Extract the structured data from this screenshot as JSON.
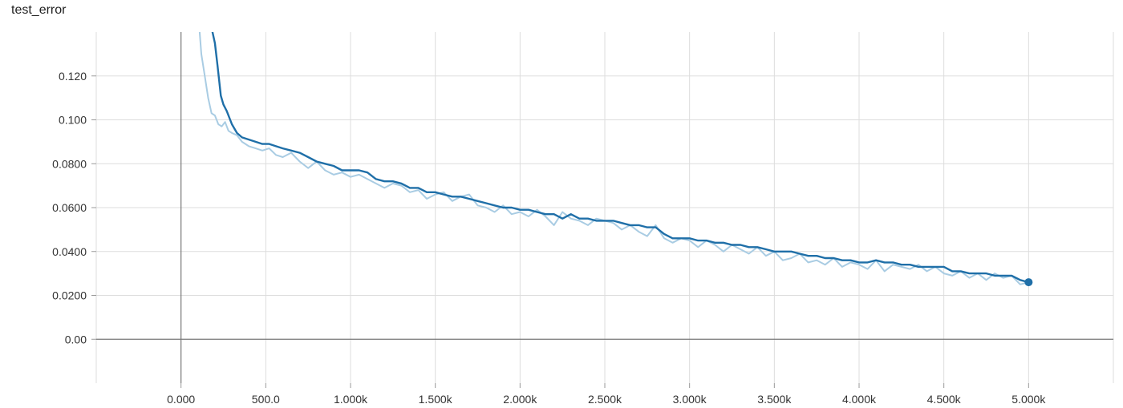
{
  "chart_data": {
    "type": "line",
    "title": "test_error",
    "xlabel": "",
    "ylabel": "",
    "xlim": [
      -500,
      5500
    ],
    "ylim": [
      -0.02,
      0.14
    ],
    "x_ticks": [
      0,
      500,
      1000,
      1500,
      2000,
      2500,
      3000,
      3500,
      4000,
      4500,
      5000
    ],
    "x_tick_labels": [
      "0.000",
      "500.0",
      "1.000k",
      "1.500k",
      "2.000k",
      "2.500k",
      "3.000k",
      "3.500k",
      "4.000k",
      "4.500k",
      "5.000k"
    ],
    "y_ticks": [
      0,
      0.02,
      0.04,
      0.06,
      0.08,
      0.1,
      0.12
    ],
    "y_tick_labels": [
      "0.00",
      "0.0200",
      "0.0400",
      "0.0600",
      "0.0800",
      "0.100",
      "0.120"
    ],
    "grid": true,
    "colors": {
      "smoothed": "#1f6fa8",
      "raw": "#a9cce3",
      "zero_line": "#777777",
      "grid": "#dddddd"
    },
    "series": [
      {
        "role": "raw",
        "x": [
          100,
          120,
          140,
          160,
          180,
          200,
          220,
          240,
          260,
          280,
          300,
          330,
          360,
          400,
          440,
          480,
          520,
          560,
          600,
          650,
          700,
          750,
          800,
          850,
          900,
          950,
          1000,
          1050,
          1100,
          1150,
          1200,
          1250,
          1300,
          1350,
          1400,
          1450,
          1500,
          1550,
          1600,
          1650,
          1700,
          1750,
          1800,
          1850,
          1900,
          1950,
          2000,
          2050,
          2100,
          2150,
          2200,
          2250,
          2300,
          2350,
          2400,
          2450,
          2500,
          2550,
          2600,
          2650,
          2700,
          2750,
          2800,
          2850,
          2900,
          2950,
          3000,
          3050,
          3100,
          3150,
          3200,
          3250,
          3300,
          3350,
          3400,
          3450,
          3500,
          3550,
          3600,
          3650,
          3700,
          3750,
          3800,
          3850,
          3900,
          3950,
          4000,
          4050,
          4100,
          4150,
          4200,
          4250,
          4300,
          4350,
          4400,
          4450,
          4500,
          4550,
          4600,
          4650,
          4700,
          4750,
          4800,
          4850,
          4900,
          4950,
          5000
        ],
        "y": [
          0.15,
          0.13,
          0.12,
          0.11,
          0.103,
          0.102,
          0.098,
          0.097,
          0.099,
          0.095,
          0.094,
          0.093,
          0.09,
          0.088,
          0.087,
          0.086,
          0.087,
          0.084,
          0.083,
          0.085,
          0.081,
          0.078,
          0.081,
          0.077,
          0.075,
          0.076,
          0.074,
          0.075,
          0.073,
          0.071,
          0.069,
          0.071,
          0.07,
          0.067,
          0.068,
          0.064,
          0.066,
          0.067,
          0.063,
          0.065,
          0.066,
          0.061,
          0.06,
          0.058,
          0.061,
          0.057,
          0.058,
          0.056,
          0.059,
          0.056,
          0.052,
          0.058,
          0.055,
          0.054,
          0.052,
          0.055,
          0.054,
          0.053,
          0.05,
          0.052,
          0.049,
          0.047,
          0.052,
          0.046,
          0.044,
          0.046,
          0.045,
          0.042,
          0.045,
          0.043,
          0.04,
          0.043,
          0.041,
          0.039,
          0.042,
          0.038,
          0.04,
          0.036,
          0.037,
          0.039,
          0.035,
          0.036,
          0.034,
          0.037,
          0.033,
          0.035,
          0.034,
          0.032,
          0.036,
          0.031,
          0.034,
          0.033,
          0.032,
          0.034,
          0.031,
          0.033,
          0.03,
          0.029,
          0.031,
          0.028,
          0.03,
          0.027,
          0.03,
          0.028,
          0.029,
          0.025,
          0.026
        ]
      },
      {
        "role": "smoothed",
        "x": [
          180,
          200,
          215,
          225,
          235,
          250,
          270,
          300,
          330,
          360,
          400,
          440,
          480,
          520,
          560,
          600,
          650,
          700,
          750,
          800,
          850,
          900,
          950,
          1000,
          1050,
          1100,
          1150,
          1200,
          1250,
          1300,
          1350,
          1400,
          1450,
          1500,
          1550,
          1600,
          1650,
          1700,
          1750,
          1800,
          1850,
          1900,
          1950,
          2000,
          2050,
          2100,
          2150,
          2200,
          2250,
          2300,
          2350,
          2400,
          2450,
          2500,
          2550,
          2600,
          2650,
          2700,
          2750,
          2800,
          2850,
          2900,
          2950,
          3000,
          3050,
          3100,
          3150,
          3200,
          3250,
          3300,
          3350,
          3400,
          3450,
          3500,
          3550,
          3600,
          3650,
          3700,
          3750,
          3800,
          3850,
          3900,
          3950,
          4000,
          4050,
          4100,
          4150,
          4200,
          4250,
          4300,
          4350,
          4400,
          4450,
          4500,
          4550,
          4600,
          4650,
          4700,
          4750,
          4800,
          4850,
          4900,
          4950,
          5000
        ],
        "y": [
          0.142,
          0.135,
          0.125,
          0.118,
          0.111,
          0.107,
          0.104,
          0.098,
          0.094,
          0.092,
          0.091,
          0.09,
          0.089,
          0.089,
          0.088,
          0.087,
          0.086,
          0.085,
          0.083,
          0.081,
          0.08,
          0.079,
          0.077,
          0.077,
          0.077,
          0.076,
          0.073,
          0.072,
          0.072,
          0.071,
          0.069,
          0.069,
          0.067,
          0.067,
          0.066,
          0.065,
          0.065,
          0.064,
          0.063,
          0.062,
          0.061,
          0.06,
          0.06,
          0.059,
          0.059,
          0.058,
          0.057,
          0.057,
          0.055,
          0.057,
          0.055,
          0.055,
          0.054,
          0.054,
          0.054,
          0.053,
          0.052,
          0.052,
          0.051,
          0.051,
          0.048,
          0.046,
          0.046,
          0.046,
          0.045,
          0.045,
          0.044,
          0.044,
          0.043,
          0.043,
          0.042,
          0.042,
          0.041,
          0.04,
          0.04,
          0.04,
          0.039,
          0.038,
          0.038,
          0.037,
          0.037,
          0.036,
          0.036,
          0.035,
          0.035,
          0.036,
          0.035,
          0.035,
          0.034,
          0.034,
          0.033,
          0.033,
          0.033,
          0.033,
          0.031,
          0.031,
          0.03,
          0.03,
          0.03,
          0.029,
          0.029,
          0.029,
          0.027,
          0.026
        ]
      }
    ]
  }
}
